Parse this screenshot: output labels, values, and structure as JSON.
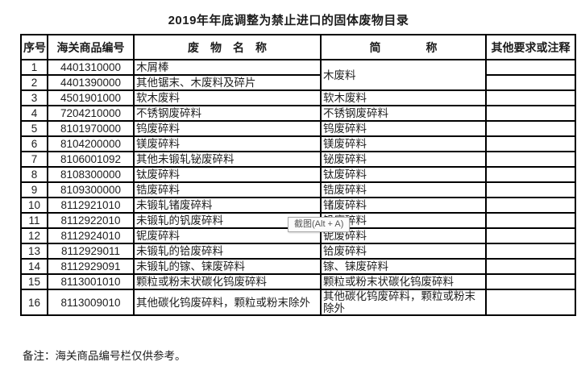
{
  "title": "2019年年底调整为禁止进口的固体废物目录",
  "table": {
    "headers": [
      "序号",
      "海关商品编号",
      "废　物　名　称",
      "简　　　　称",
      "其他要求或注释"
    ],
    "rows": [
      {
        "no": "1",
        "code": "4401310000",
        "name": "木屑棒",
        "abbr": "木废料",
        "abbr_span": 2,
        "note": ""
      },
      {
        "no": "2",
        "code": "4401390000",
        "name": "其他锯末、木废料及碎片",
        "abbr": null,
        "note": ""
      },
      {
        "no": "3",
        "code": "4501901000",
        "name": "软木废料",
        "abbr": "软木废料",
        "note": ""
      },
      {
        "no": "4",
        "code": "7204210000",
        "name": "不锈钢废碎料",
        "abbr": "不锈钢废碎料",
        "note": ""
      },
      {
        "no": "5",
        "code": "8101970000",
        "name": "钨废碎料",
        "abbr": "钨废碎料",
        "note": ""
      },
      {
        "no": "6",
        "code": "8104200000",
        "name": "镁废碎料",
        "abbr": "镁废碎料",
        "note": ""
      },
      {
        "no": "7",
        "code": "8106001092",
        "name": "其他未锻轧铋废碎料",
        "abbr": "铋废碎料",
        "note": ""
      },
      {
        "no": "8",
        "code": "8108300000",
        "name": "钛废碎料",
        "abbr": "钛废碎料",
        "note": ""
      },
      {
        "no": "9",
        "code": "8109300000",
        "name": "锆废碎料",
        "abbr": "锆废碎料",
        "note": ""
      },
      {
        "no": "10",
        "code": "8112921010",
        "name": "未锻轧锗废碎料",
        "abbr": "锗废碎料",
        "note": ""
      },
      {
        "no": "11",
        "code": "8112922010",
        "name": "未锻轧的钒废碎料",
        "abbr": "钒废碎料",
        "note": ""
      },
      {
        "no": "12",
        "code": "8112924010",
        "name": "铌废碎料",
        "abbr": "铌废碎料",
        "note": ""
      },
      {
        "no": "13",
        "code": "8112929011",
        "name": "未锻轧的铪废碎料",
        "abbr": "铪废碎料",
        "note": ""
      },
      {
        "no": "14",
        "code": "8112929091",
        "name": "未锻轧的镓、铼废碎料",
        "abbr": "镓、铼废碎料",
        "note": ""
      },
      {
        "no": "15",
        "code": "8113001010",
        "name": "颗粒或粉末状碳化钨废碎料",
        "abbr": "颗粒或粉末状碳化钨废碎料",
        "note": ""
      },
      {
        "no": "16",
        "code": "8113009010",
        "name": "其他碳化钨废碎料，颗粒或粉末除外",
        "abbr": "其他碳化钨废碎料，颗粒或粉末除外",
        "note": ""
      }
    ]
  },
  "footnote": "备注：海关商品编号栏仅供参考。",
  "tooltip": {
    "label": "截图(Alt + A)"
  },
  "colors": {
    "border": "#000000",
    "text": "#1c1c1c"
  }
}
